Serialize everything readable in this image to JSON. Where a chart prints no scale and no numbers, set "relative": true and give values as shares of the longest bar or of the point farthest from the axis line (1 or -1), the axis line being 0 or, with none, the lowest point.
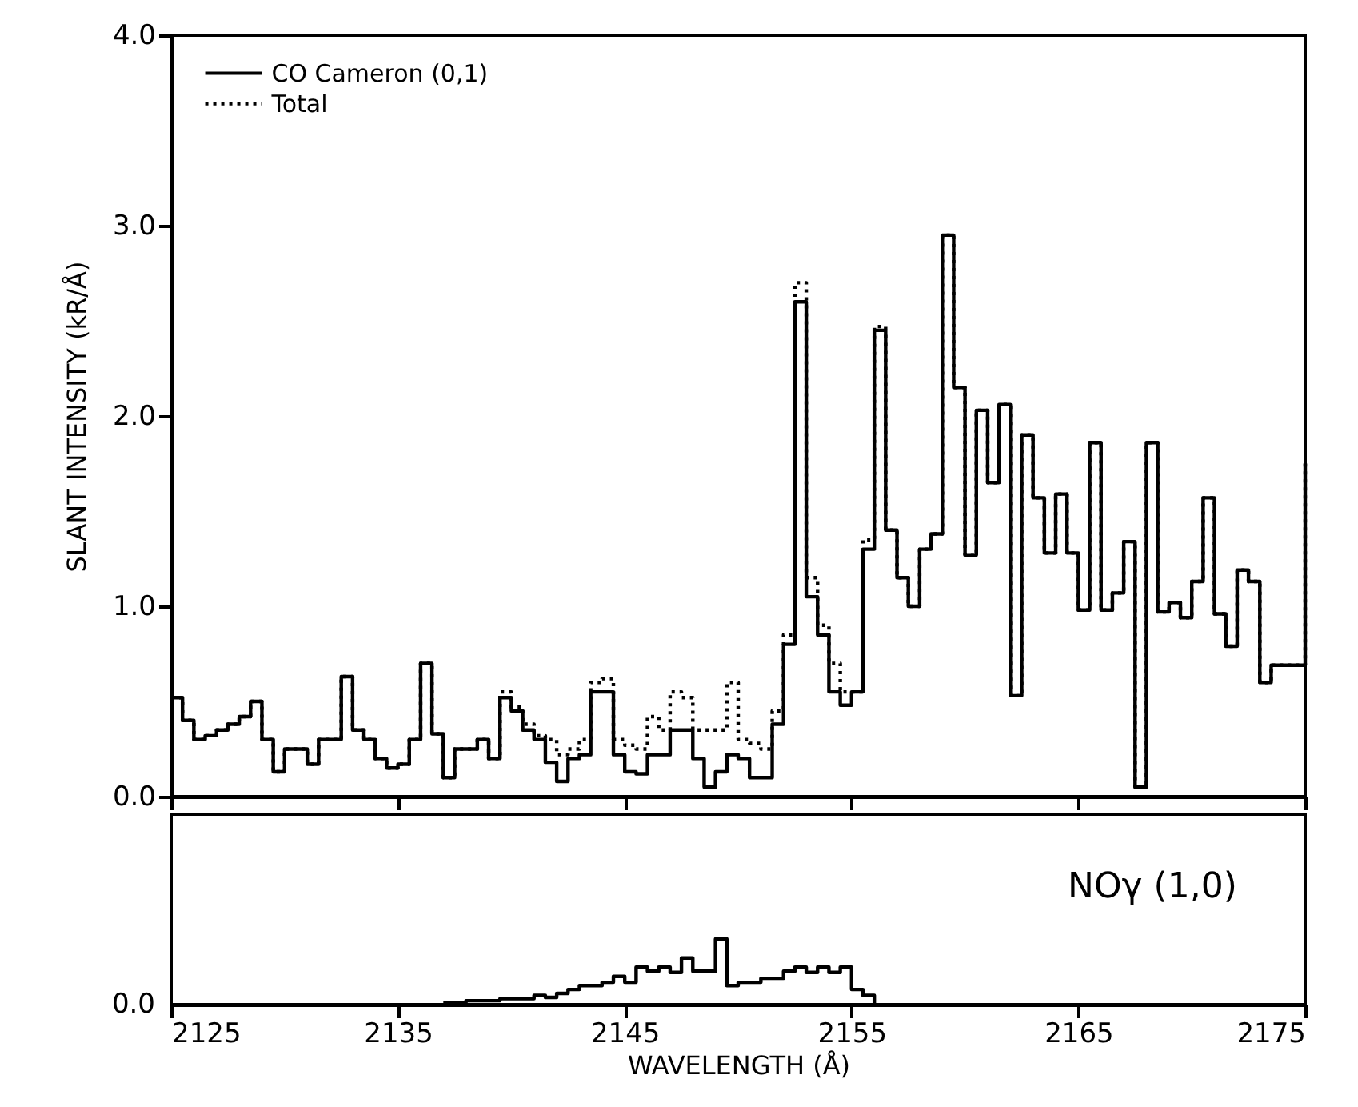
{
  "chart_data": [
    {
      "type": "step",
      "ylabel": "SLANT INTENSITY (kR/Å)",
      "xlim": [
        2125,
        2175
      ],
      "xticks": [
        2125,
        2135,
        2145,
        2155,
        2165,
        2175
      ],
      "ylim": [
        0,
        4.0
      ],
      "yticks": [
        {
          "value": 0,
          "label": "0.0"
        },
        {
          "value": 1,
          "label": "1.0"
        },
        {
          "value": 2,
          "label": "2.0"
        },
        {
          "value": 3,
          "label": "3.0"
        },
        {
          "value": 4,
          "label": "4.0"
        }
      ],
      "tick_labels": "y",
      "legend": "top left",
      "x": [
        2125,
        2125.5,
        2126,
        2126.5,
        2127,
        2127.5,
        2128,
        2128.5,
        2129,
        2129.5,
        2130,
        2130.5,
        2131,
        2131.5,
        2132,
        2132.5,
        2133,
        2133.5,
        2134,
        2134.5,
        2135,
        2135.5,
        2136,
        2136.5,
        2137,
        2137.5,
        2138,
        2138.5,
        2139,
        2139.5,
        2140,
        2140.5,
        2141,
        2141.5,
        2142,
        2142.5,
        2143,
        2143.5,
        2144,
        2144.5,
        2145,
        2145.5,
        2146,
        2146.5,
        2147,
        2147.5,
        2148,
        2148.5,
        2149,
        2149.5,
        2150,
        2150.5,
        2151,
        2151.5,
        2152,
        2152.5,
        2153,
        2153.5,
        2154,
        2154.5,
        2155,
        2155.5,
        2156,
        2156.5,
        2157,
        2157.5,
        2158,
        2158.5,
        2159,
        2159.5,
        2160,
        2160.5,
        2161,
        2161.5,
        2162,
        2162.5,
        2163,
        2163.5,
        2164,
        2164.5,
        2165,
        2165.5,
        2166,
        2166.5,
        2167,
        2167.5,
        2168,
        2168.5,
        2169,
        2169.5,
        2170,
        2170.5,
        2171,
        2171.5,
        2172,
        2172.5,
        2173,
        2173.5,
        2174,
        2174.5,
        2175
      ],
      "series": [
        {
          "name": "Total",
          "color": "#000000",
          "line_style": "dotted",
          "values": [
            0.52,
            0.4,
            0.3,
            0.32,
            0.35,
            0.38,
            0.42,
            0.5,
            0.3,
            0.13,
            0.25,
            0.25,
            0.17,
            0.3,
            0.3,
            0.63,
            0.35,
            0.3,
            0.2,
            0.15,
            0.17,
            0.3,
            0.7,
            0.33,
            0.1,
            0.25,
            0.25,
            0.3,
            0.2,
            0.55,
            0.47,
            0.38,
            0.32,
            0.3,
            0.22,
            0.25,
            0.3,
            0.6,
            0.62,
            0.3,
            0.27,
            0.25,
            0.42,
            0.35,
            0.55,
            0.52,
            0.35,
            0.35,
            0.35,
            0.6,
            0.3,
            0.28,
            0.25,
            0.45,
            0.85,
            2.7,
            1.15,
            0.9,
            0.7,
            0.55,
            0.55,
            1.35,
            2.47,
            1.4,
            1.15,
            1.0,
            1.3,
            1.38,
            2.95,
            2.15,
            1.27,
            2.03,
            1.65,
            2.06,
            0.53,
            1.9,
            1.57,
            1.28,
            1.59,
            1.28,
            0.98,
            1.86,
            0.98,
            1.07,
            1.34,
            0.05,
            1.86,
            0.97,
            1.02,
            0.94,
            1.13,
            1.57,
            0.96,
            0.79,
            1.19,
            1.13,
            0.6,
            0.69,
            0.69,
            0.69,
            1.75
          ]
        },
        {
          "name": "CO Cameron (0,1)",
          "color": "#000000",
          "line_style": "solid",
          "values": [
            0.52,
            0.4,
            0.3,
            0.32,
            0.35,
            0.38,
            0.42,
            0.5,
            0.3,
            0.13,
            0.25,
            0.25,
            0.17,
            0.3,
            0.3,
            0.63,
            0.35,
            0.3,
            0.2,
            0.15,
            0.17,
            0.3,
            0.7,
            0.33,
            0.1,
            0.25,
            0.25,
            0.3,
            0.2,
            0.52,
            0.45,
            0.35,
            0.3,
            0.18,
            0.08,
            0.2,
            0.22,
            0.55,
            0.55,
            0.22,
            0.13,
            0.12,
            0.22,
            0.22,
            0.35,
            0.35,
            0.2,
            0.05,
            0.13,
            0.22,
            0.2,
            0.1,
            0.1,
            0.38,
            0.8,
            2.6,
            1.05,
            0.85,
            0.55,
            0.48,
            0.55,
            1.3,
            2.45,
            1.4,
            1.15,
            1.0,
            1.3,
            1.38,
            2.95,
            2.15,
            1.27,
            2.03,
            1.65,
            2.06,
            0.53,
            1.9,
            1.57,
            1.28,
            1.59,
            1.28,
            0.98,
            1.86,
            0.98,
            1.07,
            1.34,
            0.05,
            1.86,
            0.97,
            1.02,
            0.94,
            1.13,
            1.57,
            0.96,
            0.79,
            1.19,
            1.13,
            0.6,
            0.69,
            0.69,
            0.69,
            1.75
          ]
        }
      ]
    },
    {
      "type": "step",
      "xlabel": "WAVELENGTH (Å)",
      "xlim": [
        2125,
        2175
      ],
      "xticks": [
        2125,
        2135,
        2145,
        2155,
        2165,
        2175
      ],
      "relative": true,
      "annotations": [
        "0.0"
      ],
      "series": [
        {
          "name": "NOγ (1,0)",
          "color": "#000000",
          "line_style": "solid",
          "x": [
            2137,
            2137.5,
            2138,
            2138.5,
            2139,
            2139.5,
            2140,
            2140.5,
            2141,
            2141.5,
            2142,
            2142.5,
            2143,
            2143.5,
            2144,
            2144.5,
            2145,
            2145.5,
            2146,
            2146.5,
            2147,
            2147.5,
            2148,
            2148.5,
            2149,
            2149.5,
            2150,
            2150.5,
            2151,
            2151.5,
            2152,
            2152.5,
            2153,
            2153.5,
            2154,
            2154.5,
            2155,
            2155.5,
            2156
          ],
          "values": [
            0.03,
            0.03,
            0.06,
            0.06,
            0.06,
            0.09,
            0.09,
            0.09,
            0.14,
            0.11,
            0.17,
            0.23,
            0.29,
            0.29,
            0.34,
            0.43,
            0.34,
            0.57,
            0.51,
            0.57,
            0.49,
            0.71,
            0.51,
            0.51,
            1,
            0.29,
            0.34,
            0.34,
            0.4,
            0.4,
            0.51,
            0.57,
            0.49,
            0.57,
            0.49,
            0.57,
            0.23,
            0.14,
            0
          ]
        }
      ]
    }
  ]
}
